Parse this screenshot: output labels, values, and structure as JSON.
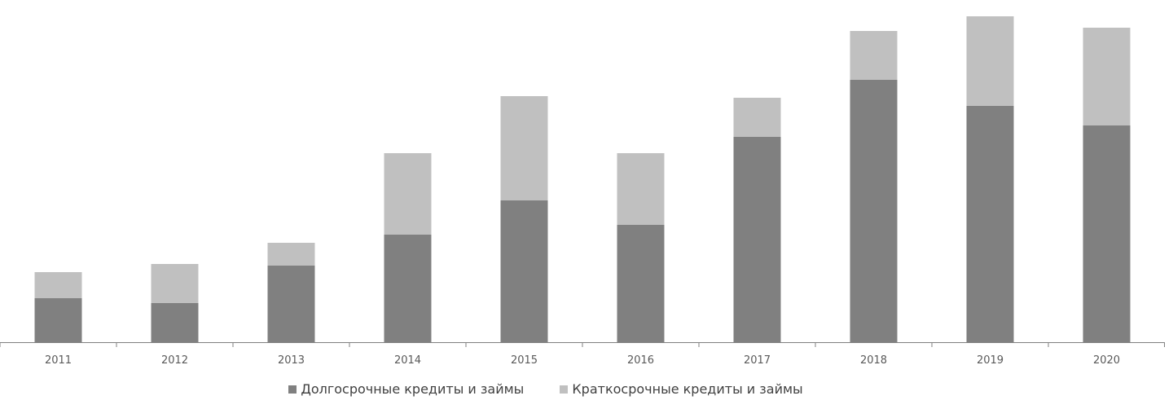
{
  "chart_data": {
    "type": "bar",
    "stacked": true,
    "categories": [
      "2011",
      "2012",
      "2013",
      "2014",
      "2015",
      "2016",
      "2017",
      "2018",
      "2019",
      "2020"
    ],
    "series": [
      {
        "name": "Долгосрочные кредиты и займы",
        "color": "#808080",
        "values": [
          54,
          48,
          94,
          132,
          174,
          144,
          252,
          322,
          290,
          266
        ]
      },
      {
        "name": "Краткосрочные кредиты и займы",
        "color": "#c0c0c0",
        "values": [
          32,
          48,
          28,
          100,
          128,
          88,
          48,
          60,
          110,
          120
        ]
      }
    ],
    "ylim": [
      0,
      402
    ],
    "grid": false,
    "legend_position": "bottom"
  }
}
